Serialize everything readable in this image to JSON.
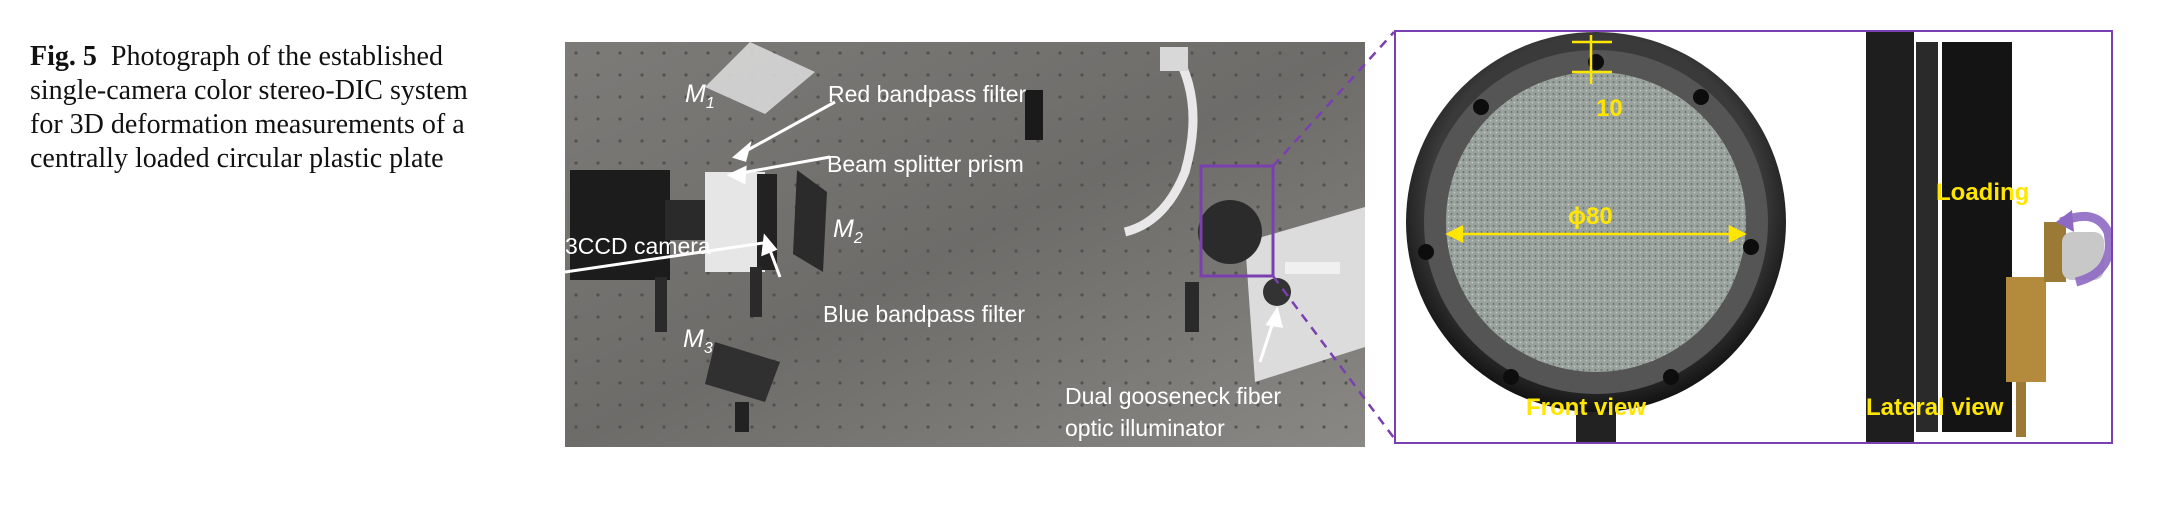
{
  "caption": {
    "fig_label": "Fig. 5",
    "text": "Photograph of the established single-camera color stereo-DIC system for 3D deformation measurements of a centrally loaded circular plastic plate"
  },
  "photo_labels": {
    "m1": "M",
    "m1_sub": "1",
    "m2": "M",
    "m2_sub": "2",
    "m3": "M",
    "m3_sub": "3",
    "red_filter": "Red bandpass filter",
    "beam_splitter": "Beam splitter prism",
    "camera": "3CCD camera",
    "blue_filter": "Blue bandpass filter",
    "illuminator_line1": "Dual  gooseneck  fiber",
    "illuminator_line2": "optic illuminator"
  },
  "inset_labels": {
    "dim_small": "10",
    "dim_diameter": "ϕ80",
    "front_view": "Front view",
    "loading": "Loading",
    "lateral_view": "Lateral view"
  },
  "colors": {
    "inset_border": "#7a3fb0",
    "annotation_yellow": "#ffe600"
  }
}
